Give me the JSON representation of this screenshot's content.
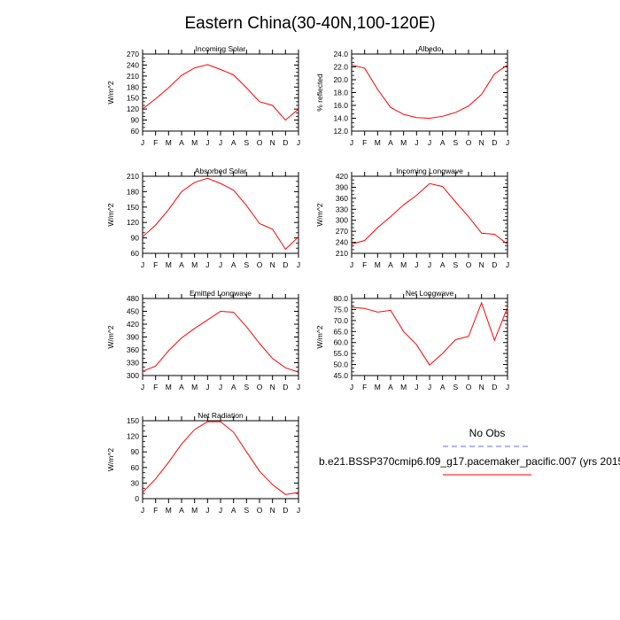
{
  "title": "Eastern China(30-40N,100-120E)",
  "legend": {
    "obs_label": "No Obs",
    "obs_color": "#6666ff",
    "model_label": "b.e21.BSSP370cmip6.f09_g17.pacemaker_pacific.007 (yrs 2015",
    "model_color": "#ff0000"
  },
  "chart_data": [
    {
      "type": "line",
      "title": "Incoming Solar",
      "ylabel": "W/m^2",
      "ylim": [
        60,
        270
      ],
      "yticks": [
        60,
        90,
        120,
        150,
        180,
        210,
        240,
        270
      ],
      "ytick_labels": [
        "60",
        "90",
        "120",
        "150",
        "180",
        "210",
        "240",
        "270"
      ],
      "categories": [
        "J",
        "F",
        "M",
        "A",
        "M",
        "J",
        "J",
        "A",
        "S",
        "O",
        "N",
        "D",
        "J"
      ],
      "values": [
        120,
        148,
        178,
        212,
        232,
        241,
        228,
        213,
        178,
        140,
        130,
        90,
        120
      ]
    },
    {
      "type": "line",
      "title": "Albedo",
      "ylabel": "% reflected",
      "ylim": [
        12,
        24
      ],
      "yticks": [
        12,
        14,
        16,
        18,
        20,
        22,
        24
      ],
      "ytick_labels": [
        "12.0",
        "14.0",
        "16.0",
        "18.0",
        "20.0",
        "22.0",
        "24.0"
      ],
      "categories": [
        "J",
        "F",
        "M",
        "A",
        "M",
        "J",
        "J",
        "A",
        "S",
        "O",
        "N",
        "D",
        "J"
      ],
      "values": [
        22.3,
        21.8,
        18.5,
        15.7,
        14.6,
        14.1,
        14.0,
        14.3,
        14.9,
        15.9,
        17.7,
        20.9,
        22.3
      ]
    },
    {
      "type": "line",
      "title": "Absorbed Solar",
      "ylabel": "W/m^2",
      "ylim": [
        60,
        210
      ],
      "yticks": [
        60,
        90,
        120,
        150,
        180,
        210
      ],
      "ytick_labels": [
        "60",
        "90",
        "120",
        "150",
        "180",
        "210"
      ],
      "categories": [
        "J",
        "F",
        "M",
        "A",
        "M",
        "J",
        "J",
        "A",
        "S",
        "O",
        "N",
        "D",
        "J"
      ],
      "values": [
        92,
        115,
        145,
        180,
        198,
        206,
        196,
        183,
        153,
        118,
        107,
        68,
        92
      ]
    },
    {
      "type": "line",
      "title": "Incoming Longwave",
      "ylabel": "W/m^2",
      "ylim": [
        210,
        420
      ],
      "yticks": [
        210,
        240,
        270,
        300,
        330,
        360,
        390,
        420
      ],
      "ytick_labels": [
        "210",
        "240",
        "270",
        "300",
        "330",
        "360",
        "390",
        "420"
      ],
      "categories": [
        "J",
        "F",
        "M",
        "A",
        "M",
        "J",
        "J",
        "A",
        "S",
        "O",
        "N",
        "D",
        "J"
      ],
      "values": [
        235,
        245,
        280,
        310,
        342,
        368,
        400,
        392,
        350,
        310,
        265,
        262,
        235
      ]
    },
    {
      "type": "line",
      "title": "Emitted Longwave",
      "ylabel": "W/m^2",
      "ylim": [
        300,
        480
      ],
      "yticks": [
        300,
        330,
        360,
        390,
        420,
        450,
        480
      ],
      "ytick_labels": [
        "300",
        "330",
        "360",
        "390",
        "420",
        "450",
        "480"
      ],
      "categories": [
        "J",
        "F",
        "M",
        "A",
        "M",
        "J",
        "J",
        "A",
        "S",
        "O",
        "N",
        "D",
        "J"
      ],
      "values": [
        310,
        322,
        358,
        388,
        410,
        430,
        450,
        448,
        414,
        375,
        340,
        318,
        308
      ]
    },
    {
      "type": "line",
      "title": "Net Longwave",
      "ylabel": "W/m^2",
      "ylim": [
        45,
        80
      ],
      "yticks": [
        45,
        50,
        55,
        60,
        65,
        70,
        75,
        80
      ],
      "ytick_labels": [
        "45.0",
        "50.0",
        "55.0",
        "60.0",
        "65.0",
        "70.0",
        "75.0",
        "80.0"
      ],
      "categories": [
        "J",
        "F",
        "M",
        "A",
        "M",
        "J",
        "J",
        "A",
        "S",
        "O",
        "N",
        "D",
        "J"
      ],
      "values": [
        76,
        75.5,
        73.8,
        74.6,
        65,
        59,
        49.8,
        55,
        61.3,
        62.8,
        78,
        61,
        76
      ]
    },
    {
      "type": "line",
      "title": "Net Radiation",
      "ylabel": "W/m^2",
      "ylim": [
        0,
        150
      ],
      "yticks": [
        0,
        30,
        60,
        90,
        120,
        150
      ],
      "ytick_labels": [
        "0",
        "30",
        "60",
        "90",
        "120",
        "150"
      ],
      "categories": [
        "J",
        "F",
        "M",
        "A",
        "M",
        "J",
        "J",
        "A",
        "S",
        "O",
        "N",
        "D",
        "J"
      ],
      "values": [
        12,
        38,
        70,
        105,
        133,
        148,
        148,
        128,
        90,
        53,
        27,
        8,
        12
      ]
    }
  ]
}
